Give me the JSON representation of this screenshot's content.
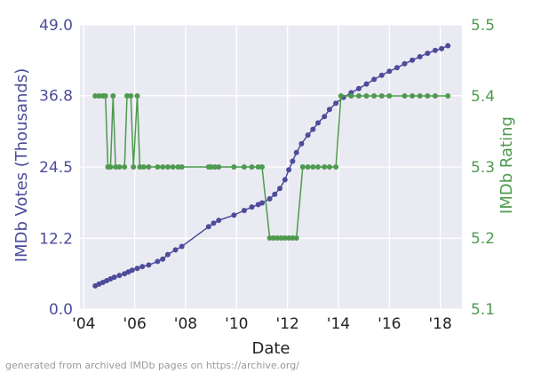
{
  "chart_data": {
    "type": "line",
    "xlabel": "Date",
    "x_ticks": [
      {
        "year": 2004,
        "label": "'04"
      },
      {
        "year": 2006,
        "label": "'06"
      },
      {
        "year": 2008,
        "label": "'08"
      },
      {
        "year": 2010,
        "label": "'10"
      },
      {
        "year": 2012,
        "label": "'12"
      },
      {
        "year": 2014,
        "label": "'14"
      },
      {
        "year": 2016,
        "label": "'16"
      },
      {
        "year": 2018,
        "label": "'18"
      }
    ],
    "xlim": [
      2003.85,
      2018.85
    ],
    "grid": true,
    "background_color": "#EAEAF2",
    "series": [
      {
        "name": "IMDb Votes (Thousands)",
        "axis": "left",
        "color": "#4C4C9B",
        "ylim": [
          0.0,
          49.0
        ],
        "y_ticks": [
          "0.0",
          "12.2",
          "24.5",
          "36.8",
          "49.0"
        ],
        "y_tick_values": [
          0.0,
          12.2,
          24.5,
          36.8,
          49.0
        ],
        "points": [
          [
            2004.45,
            4.0
          ],
          [
            2004.6,
            4.3
          ],
          [
            2004.75,
            4.6
          ],
          [
            2004.9,
            4.9
          ],
          [
            2005.05,
            5.2
          ],
          [
            2005.2,
            5.5
          ],
          [
            2005.4,
            5.8
          ],
          [
            2005.6,
            6.1
          ],
          [
            2005.75,
            6.4
          ],
          [
            2005.9,
            6.7
          ],
          [
            2006.1,
            7.0
          ],
          [
            2006.3,
            7.3
          ],
          [
            2006.55,
            7.6
          ],
          [
            2006.9,
            8.2
          ],
          [
            2007.1,
            8.6
          ],
          [
            2007.3,
            9.4
          ],
          [
            2007.6,
            10.2
          ],
          [
            2007.85,
            10.8
          ],
          [
            2008.9,
            14.2
          ],
          [
            2009.1,
            14.8
          ],
          [
            2009.3,
            15.3
          ],
          [
            2009.9,
            16.2
          ],
          [
            2010.3,
            17.0
          ],
          [
            2010.6,
            17.6
          ],
          [
            2010.85,
            18.0
          ],
          [
            2011.0,
            18.3
          ],
          [
            2011.3,
            19.0
          ],
          [
            2011.5,
            19.8
          ],
          [
            2011.7,
            20.8
          ],
          [
            2011.9,
            22.3
          ],
          [
            2012.05,
            24.0
          ],
          [
            2012.2,
            25.5
          ],
          [
            2012.35,
            27.0
          ],
          [
            2012.55,
            28.5
          ],
          [
            2012.8,
            30.0
          ],
          [
            2013.0,
            31.0
          ],
          [
            2013.2,
            32.1
          ],
          [
            2013.45,
            33.2
          ],
          [
            2013.65,
            34.4
          ],
          [
            2013.9,
            35.5
          ],
          [
            2014.2,
            36.5
          ],
          [
            2014.5,
            37.3
          ],
          [
            2014.8,
            38.0
          ],
          [
            2015.1,
            38.8
          ],
          [
            2015.4,
            39.6
          ],
          [
            2015.7,
            40.3
          ],
          [
            2016.0,
            41.0
          ],
          [
            2016.3,
            41.6
          ],
          [
            2016.6,
            42.3
          ],
          [
            2016.9,
            42.9
          ],
          [
            2017.2,
            43.5
          ],
          [
            2017.5,
            44.1
          ],
          [
            2017.8,
            44.6
          ],
          [
            2018.05,
            44.9
          ],
          [
            2018.3,
            45.4
          ]
        ]
      },
      {
        "name": "IMDb Rating",
        "axis": "right",
        "color": "#4E9A4E",
        "ylim": [
          5.1,
          5.5
        ],
        "y_ticks": [
          "5.1",
          "5.2",
          "5.3",
          "5.4",
          "5.5"
        ],
        "y_tick_values": [
          5.1,
          5.2,
          5.3,
          5.4,
          5.5
        ],
        "points": [
          [
            2004.45,
            5.4
          ],
          [
            2004.6,
            5.4
          ],
          [
            2004.75,
            5.4
          ],
          [
            2004.85,
            5.4
          ],
          [
            2004.95,
            5.3
          ],
          [
            2005.05,
            5.3
          ],
          [
            2005.15,
            5.4
          ],
          [
            2005.25,
            5.3
          ],
          [
            2005.4,
            5.3
          ],
          [
            2005.6,
            5.3
          ],
          [
            2005.7,
            5.4
          ],
          [
            2005.85,
            5.4
          ],
          [
            2005.95,
            5.3
          ],
          [
            2006.1,
            5.4
          ],
          [
            2006.2,
            5.3
          ],
          [
            2006.35,
            5.3
          ],
          [
            2006.55,
            5.3
          ],
          [
            2006.9,
            5.3
          ],
          [
            2007.1,
            5.3
          ],
          [
            2007.3,
            5.3
          ],
          [
            2007.5,
            5.3
          ],
          [
            2007.7,
            5.3
          ],
          [
            2007.85,
            5.3
          ],
          [
            2008.9,
            5.3
          ],
          [
            2009.0,
            5.3
          ],
          [
            2009.15,
            5.3
          ],
          [
            2009.3,
            5.3
          ],
          [
            2009.9,
            5.3
          ],
          [
            2010.3,
            5.3
          ],
          [
            2010.6,
            5.3
          ],
          [
            2010.85,
            5.3
          ],
          [
            2011.0,
            5.3
          ],
          [
            2011.3,
            5.2
          ],
          [
            2011.45,
            5.2
          ],
          [
            2011.6,
            5.2
          ],
          [
            2011.75,
            5.2
          ],
          [
            2011.9,
            5.2
          ],
          [
            2012.05,
            5.2
          ],
          [
            2012.2,
            5.2
          ],
          [
            2012.35,
            5.2
          ],
          [
            2012.6,
            5.3
          ],
          [
            2012.8,
            5.3
          ],
          [
            2013.0,
            5.3
          ],
          [
            2013.2,
            5.3
          ],
          [
            2013.45,
            5.3
          ],
          [
            2013.65,
            5.3
          ],
          [
            2013.9,
            5.3
          ],
          [
            2014.1,
            5.4
          ],
          [
            2014.5,
            5.4
          ],
          [
            2014.8,
            5.4
          ],
          [
            2015.1,
            5.4
          ],
          [
            2015.4,
            5.4
          ],
          [
            2015.7,
            5.4
          ],
          [
            2016.0,
            5.4
          ],
          [
            2016.6,
            5.4
          ],
          [
            2016.9,
            5.4
          ],
          [
            2017.2,
            5.4
          ],
          [
            2017.5,
            5.4
          ],
          [
            2017.8,
            5.4
          ],
          [
            2018.3,
            5.4
          ]
        ]
      }
    ],
    "footnote": "generated from archived IMDb pages on https://archive.org/"
  }
}
